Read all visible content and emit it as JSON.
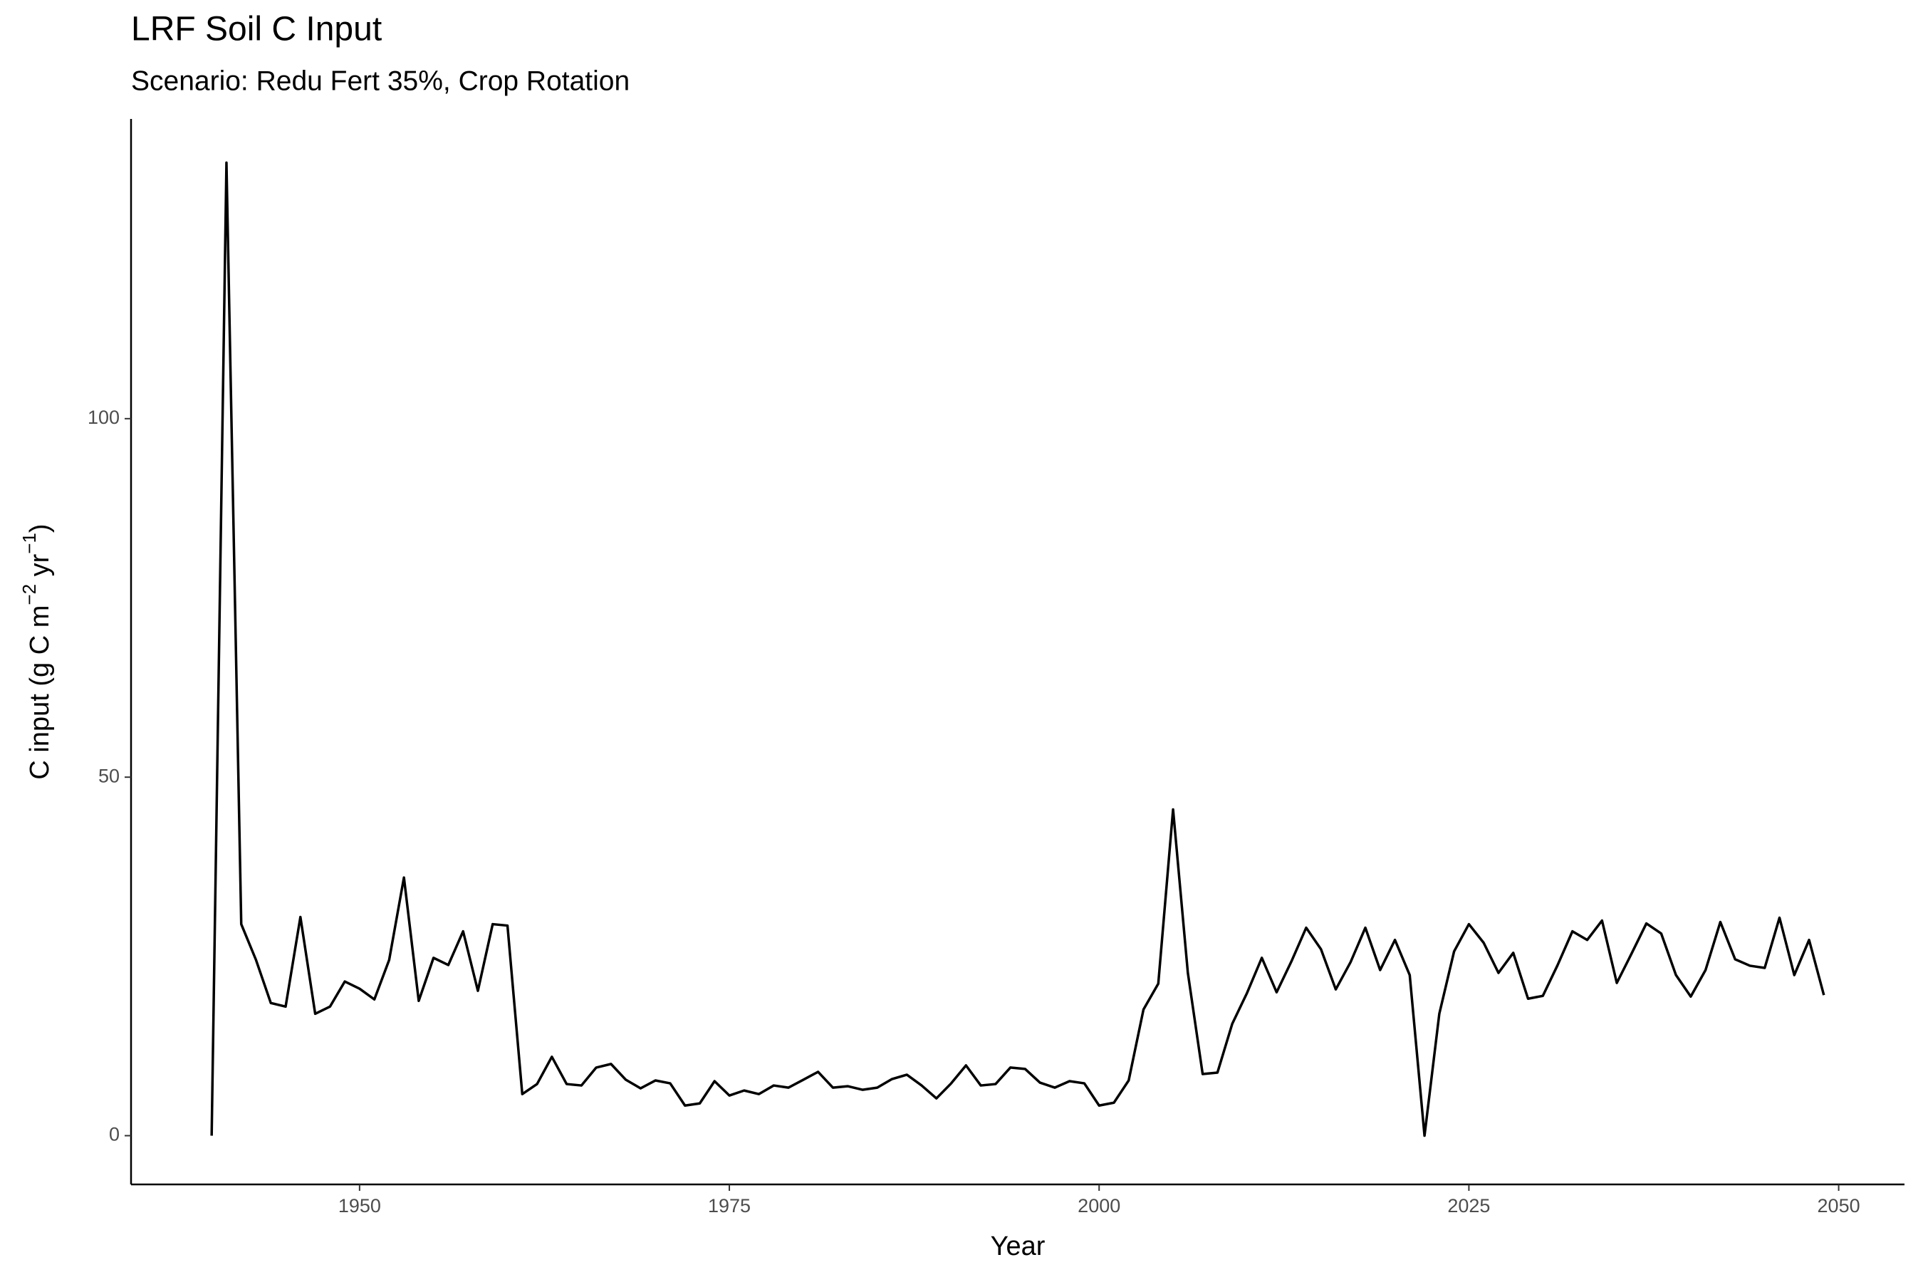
{
  "chart_data": {
    "type": "line",
    "title": "LRF Soil C Input",
    "subtitle": "Scenario: Redu Fert 35%, Crop Rotation",
    "xlabel": "Year",
    "ylabel": [
      "C input (g C m",
      "−2",
      " yr",
      "−1",
      ")"
    ],
    "x": [
      1940,
      1941,
      1942,
      1943,
      1944,
      1945,
      1946,
      1947,
      1948,
      1949,
      1950,
      1951,
      1952,
      1953,
      1954,
      1955,
      1956,
      1957,
      1958,
      1959,
      1960,
      1961,
      1962,
      1963,
      1964,
      1965,
      1966,
      1967,
      1968,
      1969,
      1970,
      1971,
      1972,
      1973,
      1974,
      1975,
      1976,
      1977,
      1978,
      1979,
      1980,
      1981,
      1982,
      1983,
      1984,
      1985,
      1986,
      1987,
      1988,
      1989,
      1990,
      1991,
      1992,
      1993,
      1994,
      1995,
      1996,
      1997,
      1998,
      1999,
      2000,
      2001,
      2002,
      2003,
      2004,
      2005,
      2006,
      2007,
      2008,
      2009,
      2010,
      2011,
      2012,
      2013,
      2014,
      2015,
      2016,
      2017,
      2018,
      2019,
      2020,
      2021,
      2022,
      2023,
      2024,
      2025,
      2026,
      2027,
      2028,
      2029,
      2030,
      2031,
      2032,
      2033,
      2034,
      2035,
      2036,
      2037,
      2038,
      2039,
      2040,
      2041,
      2042,
      2043,
      2044,
      2045,
      2046,
      2047,
      2048,
      2049
    ],
    "series": [
      {
        "color": "#000000",
        "values": [
          0,
          135.7,
          29.5,
          24.5,
          18.5,
          18,
          30.5,
          17,
          18,
          21.5,
          20.5,
          19,
          24.5,
          36,
          18.8,
          24.8,
          23.8,
          28.5,
          20.2,
          29.5,
          29.3,
          5.8,
          7.2,
          11,
          7.2,
          7,
          9.5,
          10,
          7.8,
          6.6,
          7.7,
          7.3,
          4.2,
          4.5,
          7.6,
          5.6,
          6.3,
          5.8,
          7,
          6.7,
          7.8,
          8.9,
          6.7,
          6.9,
          6.4,
          6.7,
          7.9,
          8.5,
          7,
          5.2,
          7.3,
          9.8,
          7,
          7.2,
          9.5,
          9.3,
          7.4,
          6.7,
          7.6,
          7.3,
          4.2,
          4.6,
          7.7,
          17.6,
          21.2,
          45.5,
          22.7,
          8.6,
          8.8,
          15.6,
          19.9,
          24.8,
          20,
          24.3,
          29,
          26,
          20.4,
          24.2,
          29,
          23.1,
          27.3,
          22.4,
          0,
          17,
          25.7,
          29.5,
          26.9,
          22.7,
          25.5,
          19.1,
          19.5,
          23.8,
          28.5,
          27.3,
          30,
          21.3,
          25.4,
          29.6,
          28.2,
          22.4,
          19.4,
          23.1,
          29.8,
          24.6,
          23.7,
          23.4,
          30.4,
          22.4,
          27.3,
          19.6
        ]
      }
    ],
    "xlim": [
      1934.55,
      2054.45
    ],
    "xticks": [
      1950,
      1975,
      2000,
      2025,
      2050
    ],
    "ylim": [
      -6.8,
      141.8
    ],
    "yticks": [
      0,
      50,
      100
    ],
    "grid": false
  }
}
